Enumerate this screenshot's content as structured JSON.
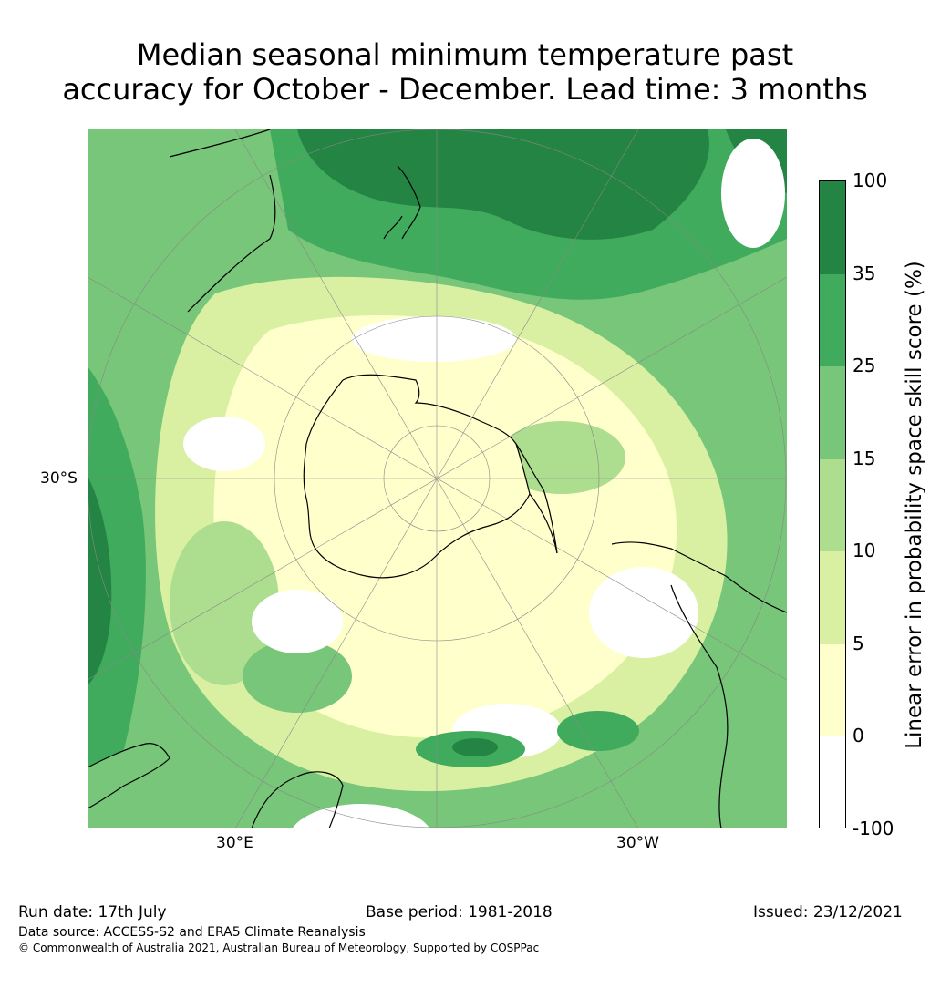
{
  "title": {
    "line1": "Median seasonal minimum temperature past",
    "line2": "accuracy for October - December. Lead time: 3 months"
  },
  "map": {
    "projection": "south-polar-stereographic",
    "lat_label": "30°S",
    "lon_labels": [
      "30°E",
      "30°W"
    ],
    "colors": {
      "land_outline": "#000000",
      "graticule": "#888888"
    }
  },
  "colorbar": {
    "label": "Linear error in probability space skill score (%)",
    "ticks": [
      "100",
      "35",
      "25",
      "15",
      "10",
      "5",
      "0",
      "-100"
    ],
    "bins": [
      {
        "range": "35 to 100",
        "color": "#238443"
      },
      {
        "range": "25 to 35",
        "color": "#41ab5d"
      },
      {
        "range": "15 to 25",
        "color": "#78c679"
      },
      {
        "range": "10 to 15",
        "color": "#addd8e"
      },
      {
        "range": "5 to 10",
        "color": "#d9f0a3"
      },
      {
        "range": "0 to 5",
        "color": "#ffffcc"
      },
      {
        "range": "-100 to 0",
        "color": "#ffffff"
      }
    ]
  },
  "footer": {
    "run_date": "Run date: 17th July",
    "base_period": "Base period: 1981-2018",
    "issued": "Issued: 23/12/2021",
    "data_source": "Data source: ACCESS-S2 and ERA5 Climate Reanalysis",
    "copyright": "© Commonwealth of Australia 2021, Australian Bureau of Meteorology, Supported by COSPPac"
  }
}
